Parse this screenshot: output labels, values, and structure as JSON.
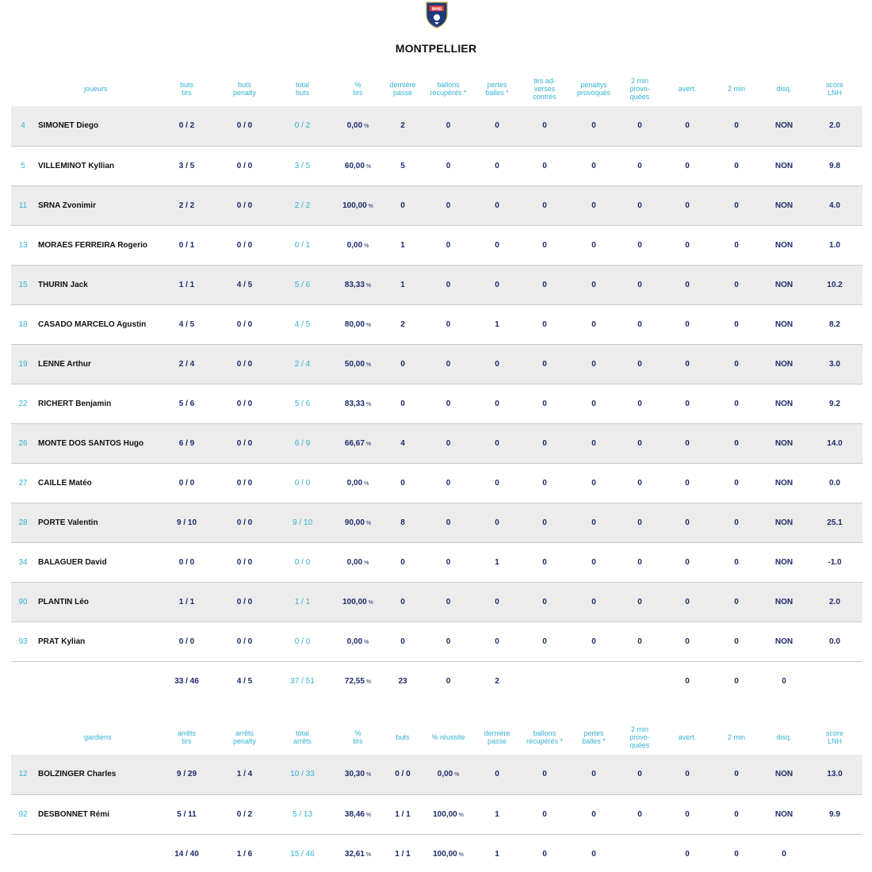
{
  "team": {
    "name": "MONTPELLIER",
    "logo_icon": "handball-club-shield-icon",
    "logo_text": "MHB"
  },
  "colors": {
    "accent": "#34b2d1",
    "value": "#1c2b6b",
    "row_shade": "#ececec"
  },
  "players": {
    "headers": [
      [
        "joueurs"
      ],
      [
        "buts",
        "tirs"
      ],
      [
        "buts",
        "penalty"
      ],
      [
        "total",
        "buts"
      ],
      [
        "%",
        "tirs"
      ],
      [
        "dernière",
        "passe"
      ],
      [
        "ballons",
        "récupérés *"
      ],
      [
        "pertes",
        "balles *"
      ],
      [
        "tirs ad-",
        "verses",
        "contrés"
      ],
      [
        "penaltys",
        "provoqués"
      ],
      [
        "2 min",
        "provo-",
        "quées"
      ],
      [
        "avert."
      ],
      [
        "2 min"
      ],
      [
        "disq."
      ],
      [
        "score",
        "LNH"
      ]
    ],
    "rows": [
      [
        "4",
        "SIMONET Diego",
        "0 / 2",
        "0 / 0",
        "0 / 2",
        "0,00",
        "2",
        "0",
        "0",
        "0",
        "0",
        "0",
        "0",
        "0",
        "NON",
        "2.0"
      ],
      [
        "5",
        "VILLEMINOT Kyllian",
        "3 / 5",
        "0 / 0",
        "3 / 5",
        "60,00",
        "5",
        "0",
        "0",
        "0",
        "0",
        "0",
        "0",
        "0",
        "NON",
        "9.8"
      ],
      [
        "11",
        "SRNA Zvonimir",
        "2 / 2",
        "0 / 0",
        "2 / 2",
        "100,00",
        "0",
        "0",
        "0",
        "0",
        "0",
        "0",
        "0",
        "0",
        "NON",
        "4.0"
      ],
      [
        "13",
        "MORAES FERREIRA Rogerio",
        "0 / 1",
        "0 / 0",
        "0 / 1",
        "0,00",
        "1",
        "0",
        "0",
        "0",
        "0",
        "0",
        "0",
        "0",
        "NON",
        "1.0"
      ],
      [
        "15",
        "THURIN Jack",
        "1 / 1",
        "4 / 5",
        "5 / 6",
        "83,33",
        "1",
        "0",
        "0",
        "0",
        "0",
        "0",
        "0",
        "0",
        "NON",
        "10.2"
      ],
      [
        "18",
        "CASADO MARCELO Agustin",
        "4 / 5",
        "0 / 0",
        "4 / 5",
        "80,00",
        "2",
        "0",
        "1",
        "0",
        "0",
        "0",
        "0",
        "0",
        "NON",
        "8.2"
      ],
      [
        "19",
        "LENNE Arthur",
        "2 / 4",
        "0 / 0",
        "2 / 4",
        "50,00",
        "0",
        "0",
        "0",
        "0",
        "0",
        "0",
        "0",
        "0",
        "NON",
        "3.0"
      ],
      [
        "22",
        "RICHERT Benjamin",
        "5 / 6",
        "0 / 0",
        "5 / 6",
        "83,33",
        "0",
        "0",
        "0",
        "0",
        "0",
        "0",
        "0",
        "0",
        "NON",
        "9.2"
      ],
      [
        "26",
        "MONTE DOS SANTOS Hugo",
        "6 / 9",
        "0 / 0",
        "6 / 9",
        "66,67",
        "4",
        "0",
        "0",
        "0",
        "0",
        "0",
        "0",
        "0",
        "NON",
        "14.0"
      ],
      [
        "27",
        "CAILLE Matéo",
        "0 / 0",
        "0 / 0",
        "0 / 0",
        "0,00",
        "0",
        "0",
        "0",
        "0",
        "0",
        "0",
        "0",
        "0",
        "NON",
        "0.0"
      ],
      [
        "28",
        "PORTE Valentin",
        "9 / 10",
        "0 / 0",
        "9 / 10",
        "90,00",
        "8",
        "0",
        "0",
        "0",
        "0",
        "0",
        "0",
        "0",
        "NON",
        "25.1"
      ],
      [
        "34",
        "BALAGUER David",
        "0 / 0",
        "0 / 0",
        "0 / 0",
        "0,00",
        "0",
        "0",
        "1",
        "0",
        "0",
        "0",
        "0",
        "0",
        "NON",
        "-1.0"
      ],
      [
        "90",
        "PLANTIN Léo",
        "1 / 1",
        "0 / 0",
        "1 / 1",
        "100,00",
        "0",
        "0",
        "0",
        "0",
        "0",
        "0",
        "0",
        "0",
        "NON",
        "2.0"
      ],
      [
        "93",
        "PRAT Kylian",
        "0 / 0",
        "0 / 0",
        "0 / 0",
        "0,00",
        "0",
        "0",
        "0",
        "0",
        "0",
        "0",
        "0",
        "0",
        "NON",
        "0.0"
      ]
    ],
    "total": [
      "",
      "",
      "33 / 46",
      "4 / 5",
      "37 / 51",
      "72,55",
      "23",
      "0",
      "2",
      "",
      "",
      "",
      "0",
      "0",
      "0",
      ""
    ]
  },
  "goalkeepers": {
    "headers": [
      [
        "gardiens"
      ],
      [
        "arrêts",
        "tirs"
      ],
      [
        "arrêts",
        "penalty"
      ],
      [
        "total",
        "arrêts"
      ],
      [
        "%",
        "tirs"
      ],
      [
        "buts"
      ],
      [
        "% réussite"
      ],
      [
        "dernière",
        "passe"
      ],
      [
        "ballons",
        "récupérés *"
      ],
      [
        "pertes",
        "balles *"
      ],
      [
        "2 min",
        "provo-",
        "quées"
      ],
      [
        "avert."
      ],
      [
        "2 min"
      ],
      [
        "disq."
      ],
      [
        "score",
        "LNH"
      ]
    ],
    "rows": [
      [
        "12",
        "BOLZINGER Charles",
        "9 / 29",
        "1 / 4",
        "10 / 33",
        "30,30",
        "0 / 0",
        "0,00",
        "0",
        "0",
        "0",
        "0",
        "0",
        "0",
        "NON",
        "13.0"
      ],
      [
        "92",
        "DESBONNET Rémi",
        "5 / 11",
        "0 / 2",
        "5 / 13",
        "38,46",
        "1 / 1",
        "100,00",
        "1",
        "0",
        "0",
        "0",
        "0",
        "0",
        "NON",
        "9.9"
      ]
    ],
    "total": [
      "",
      "",
      "14 / 40",
      "1 / 6",
      "15 / 46",
      "32,61",
      "1 / 1",
      "100,00",
      "1",
      "0",
      "0",
      "",
      "0",
      "0",
      "0",
      ""
    ]
  },
  "percent_unit": "%"
}
